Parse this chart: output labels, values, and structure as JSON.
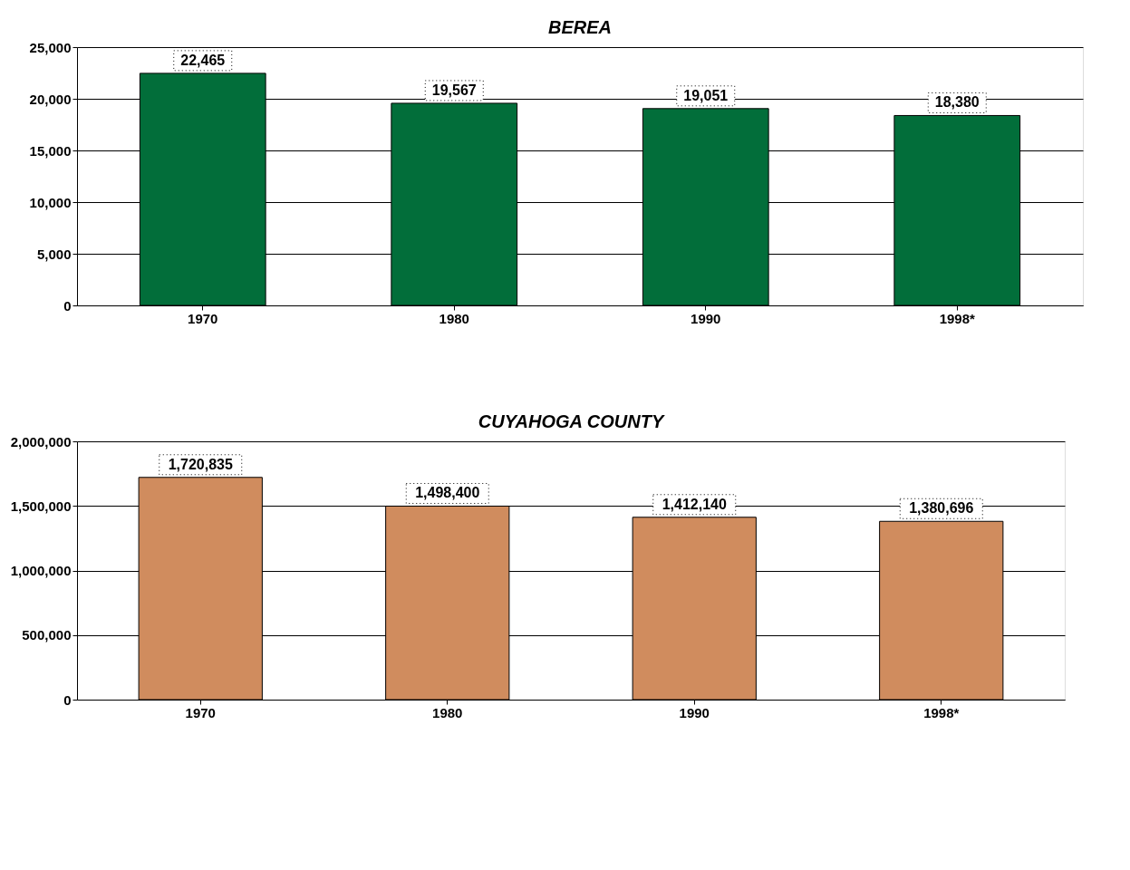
{
  "chart_data": [
    {
      "type": "bar",
      "title": "BEREA",
      "categories": [
        "1970",
        "1980",
        "1990",
        "1998*"
      ],
      "series": [
        {
          "color": "#026e3a",
          "values": [
            22465,
            19567,
            19051,
            18380
          ],
          "value_labels": [
            "22,465",
            "19,567",
            "19,051",
            "18,380"
          ]
        }
      ],
      "ylim": [
        0,
        25000
      ],
      "yticks": [
        0,
        {
          "value": 5000,
          "label": "5,000"
        },
        {
          "value": 10000,
          "label": "10,000"
        },
        {
          "value": 15000,
          "label": "15,000"
        },
        {
          "value": 20000,
          "label": "20,000"
        },
        {
          "value": 25000,
          "label": "25,000"
        }
      ],
      "grid": "y"
    },
    {
      "type": "bar",
      "title": "CUYAHOGA COUNTY",
      "categories": [
        "1970",
        "1980",
        "1990",
        "1998*"
      ],
      "series": [
        {
          "color": "#d08c5e",
          "values": [
            1720835,
            1498400,
            1412140,
            1380696
          ],
          "value_labels": [
            "1,720,835",
            "1,498,400",
            "1,412,140",
            "1,380,696"
          ]
        }
      ],
      "ylim": [
        0,
        2000000
      ],
      "yticks": [
        0,
        {
          "value": 500000,
          "label": "500,000"
        },
        {
          "value": 1000000,
          "label": "1,000,000"
        },
        {
          "value": 1500000,
          "label": "1,500,000"
        },
        {
          "value": 2000000,
          "label": "2,000,000"
        }
      ],
      "grid": "y"
    }
  ]
}
